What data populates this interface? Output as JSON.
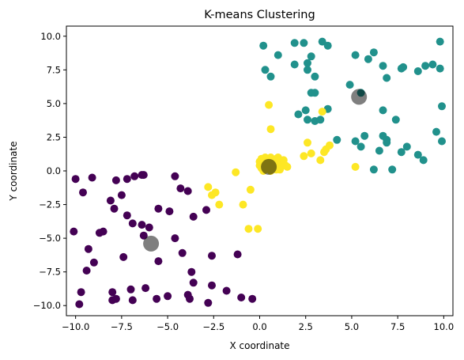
{
  "chart_data": {
    "type": "scatter",
    "title": "K-means Clustering",
    "xlabel": "X coordinate",
    "ylabel": "Y coordinate",
    "xlim": [
      -10.5,
      10.5
    ],
    "ylim": [
      -10.75,
      10.75
    ],
    "xticks": [
      -10.0,
      -7.5,
      -5.0,
      -2.5,
      0.0,
      2.5,
      5.0,
      7.5,
      10.0
    ],
    "yticks": [
      -10.0,
      -7.5,
      -5.0,
      -2.5,
      0.0,
      2.5,
      5.0,
      7.5,
      10.0
    ],
    "tick_labels_x": [
      "−10.0",
      "−7.5",
      "−5.0",
      "−2.5",
      "0.0",
      "2.5",
      "5.0",
      "7.5",
      "10.0"
    ],
    "tick_labels_y": [
      "−10.0",
      "−7.5",
      "−5.0",
      "−2.5",
      "0.0",
      "2.5",
      "5.0",
      "7.5",
      "10.0"
    ],
    "grid": false,
    "legend": false,
    "series": [
      {
        "color": "#440154",
        "points": [
          [
            -10.0,
            -0.6
          ],
          [
            -9.1,
            -0.5
          ],
          [
            -7.2,
            -0.6
          ],
          [
            -6.8,
            -0.4
          ],
          [
            -6.4,
            -0.3
          ],
          [
            -6.3,
            -0.3
          ],
          [
            -7.8,
            -0.7
          ],
          [
            -9.6,
            -1.6
          ],
          [
            -7.5,
            -1.8
          ],
          [
            -4.6,
            -0.4
          ],
          [
            -3.9,
            -1.5
          ],
          [
            -4.3,
            -1.3
          ],
          [
            -8.1,
            -2.2
          ],
          [
            -7.9,
            -2.8
          ],
          [
            -8.5,
            -4.5
          ],
          [
            -8.7,
            -4.6
          ],
          [
            -7.2,
            -3.3
          ],
          [
            -6.9,
            -3.9
          ],
          [
            -6.4,
            -4.0
          ],
          [
            -5.5,
            -2.8
          ],
          [
            -4.9,
            -3.0
          ],
          [
            -3.6,
            -3.4
          ],
          [
            -2.9,
            -2.9
          ],
          [
            -4.6,
            -5.0
          ],
          [
            -6.0,
            -4.2
          ],
          [
            -6.3,
            -4.8
          ],
          [
            -10.1,
            -4.5
          ],
          [
            -9.3,
            -5.8
          ],
          [
            -9.0,
            -6.8
          ],
          [
            -7.4,
            -6.4
          ],
          [
            -5.5,
            -6.7
          ],
          [
            -4.2,
            -6.1
          ],
          [
            -2.6,
            -6.3
          ],
          [
            -1.2,
            -6.2
          ],
          [
            -9.4,
            -7.4
          ],
          [
            -3.7,
            -7.5
          ],
          [
            -3.6,
            -8.3
          ],
          [
            -2.6,
            -8.5
          ],
          [
            -1.8,
            -8.9
          ],
          [
            -9.7,
            -9.0
          ],
          [
            -8.0,
            -9.0
          ],
          [
            -7.0,
            -8.8
          ],
          [
            -6.2,
            -8.7
          ],
          [
            -3.9,
            -9.2
          ],
          [
            -3.8,
            -9.5
          ],
          [
            -8.0,
            -9.6
          ],
          [
            -7.8,
            -9.5
          ],
          [
            -6.9,
            -9.6
          ],
          [
            -5.6,
            -9.5
          ],
          [
            -5.0,
            -9.3
          ],
          [
            -2.8,
            -9.8
          ],
          [
            -9.8,
            -9.9
          ],
          [
            -1.0,
            -9.4
          ],
          [
            -0.4,
            -9.5
          ]
        ]
      },
      {
        "color": "#21918c",
        "points": [
          [
            0.2,
            9.3
          ],
          [
            1.0,
            8.6
          ],
          [
            1.9,
            9.5
          ],
          [
            2.4,
            9.5
          ],
          [
            3.4,
            9.6
          ],
          [
            3.7,
            9.3
          ],
          [
            2.8,
            8.5
          ],
          [
            1.9,
            7.9
          ],
          [
            2.6,
            8.0
          ],
          [
            0.3,
            7.5
          ],
          [
            0.6,
            7.0
          ],
          [
            2.6,
            7.5
          ],
          [
            3.0,
            7.0
          ],
          [
            5.2,
            8.6
          ],
          [
            6.2,
            8.8
          ],
          [
            5.9,
            8.3
          ],
          [
            6.7,
            7.8
          ],
          [
            7.7,
            7.6
          ],
          [
            7.8,
            7.7
          ],
          [
            8.6,
            7.4
          ],
          [
            9.0,
            7.8
          ],
          [
            9.4,
            7.9
          ],
          [
            9.8,
            7.6
          ],
          [
            9.8,
            9.6
          ],
          [
            6.9,
            6.9
          ],
          [
            4.9,
            6.4
          ],
          [
            2.8,
            5.8
          ],
          [
            3.0,
            5.8
          ],
          [
            5.5,
            5.8
          ],
          [
            2.5,
            4.5
          ],
          [
            3.7,
            4.6
          ],
          [
            2.1,
            4.2
          ],
          [
            2.6,
            3.8
          ],
          [
            3.0,
            3.7
          ],
          [
            3.3,
            3.8
          ],
          [
            4.2,
            2.3
          ],
          [
            5.7,
            2.6
          ],
          [
            6.7,
            2.6
          ],
          [
            6.9,
            2.3
          ],
          [
            6.9,
            2.1
          ],
          [
            5.2,
            2.2
          ],
          [
            5.5,
            1.8
          ],
          [
            6.5,
            1.5
          ],
          [
            8.0,
            1.8
          ],
          [
            7.7,
            1.4
          ],
          [
            8.6,
            1.2
          ],
          [
            8.9,
            0.8
          ],
          [
            6.2,
            0.1
          ],
          [
            7.2,
            0.1
          ],
          [
            9.9,
            2.2
          ],
          [
            9.6,
            2.9
          ],
          [
            9.9,
            4.8
          ],
          [
            6.7,
            4.5
          ],
          [
            7.4,
            3.8
          ]
        ]
      },
      {
        "color": "#fde725",
        "points": [
          [
            0.5,
            4.9
          ],
          [
            0.6,
            3.1
          ],
          [
            3.4,
            4.4
          ],
          [
            2.6,
            2.1
          ],
          [
            2.4,
            1.1
          ],
          [
            2.8,
            1.3
          ],
          [
            3.6,
            1.6
          ],
          [
            3.8,
            1.9
          ],
          [
            3.5,
            1.4
          ],
          [
            3.3,
            0.8
          ],
          [
            5.2,
            0.3
          ],
          [
            -2.8,
            -1.2
          ],
          [
            -2.4,
            -1.6
          ],
          [
            -1.3,
            -0.1
          ],
          [
            -2.6,
            -1.8
          ],
          [
            -2.2,
            -2.5
          ],
          [
            -0.9,
            -2.5
          ],
          [
            -0.5,
            -1.4
          ],
          [
            -0.6,
            -4.3
          ],
          [
            -0.1,
            -4.3
          ],
          [
            0.1,
            0.9
          ],
          [
            0.3,
            1.0
          ],
          [
            0.6,
            1.0
          ],
          [
            0.9,
            0.9
          ],
          [
            1.2,
            0.6
          ],
          [
            1.3,
            0.5
          ],
          [
            0.0,
            0.4
          ],
          [
            0.1,
            0.2
          ],
          [
            0.2,
            0.3
          ],
          [
            0.4,
            0.5
          ],
          [
            0.7,
            0.4
          ],
          [
            1.0,
            0.3
          ],
          [
            0.2,
            0.6
          ],
          [
            0.5,
            0.7
          ],
          [
            0.8,
            0.6
          ],
          [
            1.1,
            0.7
          ],
          [
            0.3,
            0.1
          ],
          [
            0.6,
            0.0
          ],
          [
            0.9,
            0.1
          ],
          [
            1.4,
            0.4
          ],
          [
            0.0,
            0.7
          ],
          [
            0.4,
            0.9
          ],
          [
            1.0,
            1.0
          ],
          [
            1.5,
            0.3
          ],
          [
            1.3,
            0.8
          ],
          [
            0.2,
            0.0
          ],
          [
            0.7,
            0.2
          ],
          [
            1.1,
            0.1
          ],
          [
            0.5,
            0.3
          ],
          [
            0.8,
            0.8
          ]
        ]
      }
    ],
    "centroids": {
      "color": "#000000",
      "opacity": 0.5,
      "points": [
        [
          -5.9,
          -5.4
        ],
        [
          5.4,
          5.5
        ],
        [
          0.5,
          0.3
        ]
      ]
    }
  }
}
